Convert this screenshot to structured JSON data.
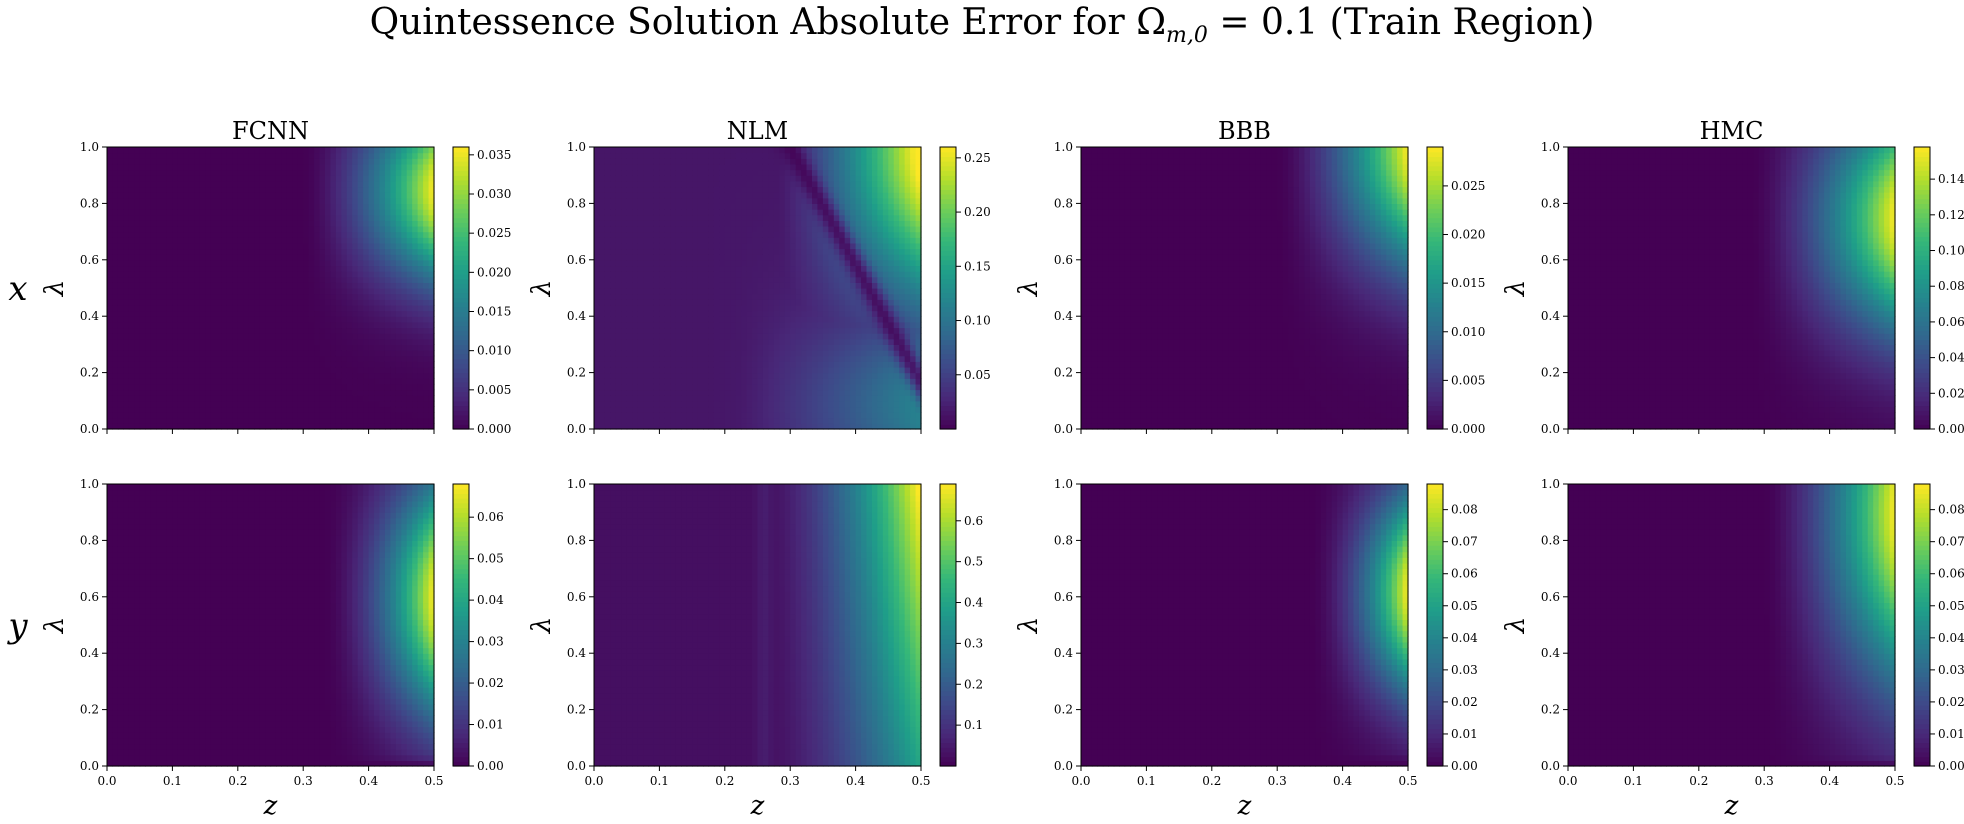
{
  "title_parts": {
    "before": "Quintessence Solution Absolute Error for Ω",
    "subscript": "m,0",
    "after": " = 0.1 (Train Region)"
  },
  "row_labels": [
    "x",
    "y"
  ],
  "colormap": "viridis",
  "colormap_stops": [
    "#440154",
    "#482878",
    "#3e4989",
    "#31688e",
    "#26828e",
    "#1f9e89",
    "#35b779",
    "#6ece58",
    "#b5de2b",
    "#fde725"
  ],
  "chart_data": [
    {
      "type": "heatmap",
      "row": 0,
      "col": 0,
      "title": "FCNN",
      "xlabel": "",
      "ylabel": "λ",
      "xlim": [
        0,
        0.5
      ],
      "ylim": [
        0,
        1.0
      ],
      "show_xticklabels": false,
      "x_ticks": [
        "0.0",
        "0.1",
        "0.2",
        "0.3",
        "0.4",
        "0.5"
      ],
      "y_ticks": [
        "0.0",
        "0.2",
        "0.4",
        "0.6",
        "0.8",
        "1.0"
      ],
      "colorbar": {
        "min": 0.0,
        "max": 0.036,
        "ticks": [
          "0.000",
          "0.005",
          "0.010",
          "0.015",
          "0.020",
          "0.025",
          "0.030",
          "0.035"
        ]
      },
      "pattern": {
        "kind": "corner",
        "z0": 0.3,
        "lambda_center": 0.85,
        "lambda_width": 0.32
      }
    },
    {
      "type": "heatmap",
      "row": 0,
      "col": 1,
      "title": "NLM",
      "xlabel": "",
      "ylabel": "λ",
      "xlim": [
        0,
        0.5
      ],
      "ylim": [
        0,
        1.0
      ],
      "show_xticklabels": false,
      "x_ticks": [
        "0.0",
        "0.1",
        "0.2",
        "0.3",
        "0.4",
        "0.5"
      ],
      "y_ticks": [
        "0.0",
        "0.2",
        "0.4",
        "0.6",
        "0.8",
        "1.0"
      ],
      "colorbar": {
        "min": 0.0,
        "max": 0.26,
        "ticks": [
          "0.05",
          "0.10",
          "0.15",
          "0.20",
          "0.25"
        ]
      },
      "pattern": {
        "kind": "nlm_x"
      }
    },
    {
      "type": "heatmap",
      "row": 0,
      "col": 2,
      "title": "BBB",
      "xlabel": "",
      "ylabel": "λ",
      "xlim": [
        0,
        0.5
      ],
      "ylim": [
        0,
        1.0
      ],
      "show_xticklabels": false,
      "x_ticks": [
        "0.0",
        "0.1",
        "0.2",
        "0.3",
        "0.4",
        "0.5"
      ],
      "y_ticks": [
        "0.0",
        "0.2",
        "0.4",
        "0.6",
        "0.8",
        "1.0"
      ],
      "colorbar": {
        "min": 0.0,
        "max": 0.029,
        "ticks": [
          "0.000",
          "0.005",
          "0.010",
          "0.015",
          "0.020",
          "0.025"
        ]
      },
      "pattern": {
        "kind": "corner",
        "z0": 0.3,
        "lambda_center": 1.0,
        "lambda_width": 0.42
      }
    },
    {
      "type": "heatmap",
      "row": 0,
      "col": 3,
      "title": "HMC",
      "xlabel": "",
      "ylabel": "λ",
      "xlim": [
        0,
        0.5
      ],
      "ylim": [
        0,
        1.0
      ],
      "show_xticklabels": false,
      "x_ticks": [
        "0.0",
        "0.1",
        "0.2",
        "0.3",
        "0.4",
        "0.5"
      ],
      "y_ticks": [
        "0.0",
        "0.2",
        "0.4",
        "0.6",
        "0.8",
        "1.0"
      ],
      "colorbar": {
        "min": 0.0,
        "max": 0.158,
        "ticks": [
          "0.00",
          "0.02",
          "0.04",
          "0.06",
          "0.08",
          "0.10",
          "0.12",
          "0.14"
        ]
      },
      "pattern": {
        "kind": "corner",
        "z0": 0.28,
        "lambda_center": 0.75,
        "lambda_width": 0.4
      }
    },
    {
      "type": "heatmap",
      "row": 1,
      "col": 0,
      "title": "",
      "xlabel": "z",
      "ylabel": "λ",
      "xlim": [
        0,
        0.5
      ],
      "ylim": [
        0,
        1.0
      ],
      "show_xticklabels": true,
      "x_ticks": [
        "0.0",
        "0.1",
        "0.2",
        "0.3",
        "0.4",
        "0.5"
      ],
      "y_ticks": [
        "0.0",
        "0.2",
        "0.4",
        "0.6",
        "0.8",
        "1.0"
      ],
      "colorbar": {
        "min": 0.0,
        "max": 0.068,
        "ticks": [
          "0.00",
          "0.01",
          "0.02",
          "0.03",
          "0.04",
          "0.05",
          "0.06"
        ]
      },
      "pattern": {
        "kind": "edge",
        "z0": 0.33,
        "lambda_center": 0.6,
        "lambda_width": 0.42,
        "bottom_dip": 0.04
      }
    },
    {
      "type": "heatmap",
      "row": 1,
      "col": 1,
      "title": "",
      "xlabel": "z",
      "ylabel": "λ",
      "xlim": [
        0,
        0.5
      ],
      "ylim": [
        0,
        1.0
      ],
      "show_xticklabels": true,
      "x_ticks": [
        "0.0",
        "0.1",
        "0.2",
        "0.3",
        "0.4",
        "0.5"
      ],
      "y_ticks": [
        "0.0",
        "0.2",
        "0.4",
        "0.6",
        "0.8",
        "1.0"
      ],
      "colorbar": {
        "min": 0.0,
        "max": 0.69,
        "ticks": [
          "0.1",
          "0.2",
          "0.3",
          "0.4",
          "0.5",
          "0.6"
        ]
      },
      "pattern": {
        "kind": "nlm_y"
      }
    },
    {
      "type": "heatmap",
      "row": 1,
      "col": 2,
      "title": "",
      "xlabel": "z",
      "ylabel": "λ",
      "xlim": [
        0,
        0.5
      ],
      "ylim": [
        0,
        1.0
      ],
      "show_xticklabels": true,
      "x_ticks": [
        "0.0",
        "0.1",
        "0.2",
        "0.3",
        "0.4",
        "0.5"
      ],
      "y_ticks": [
        "0.0",
        "0.2",
        "0.4",
        "0.6",
        "0.8",
        "1.0"
      ],
      "colorbar": {
        "min": 0.0,
        "max": 0.088,
        "ticks": [
          "0.00",
          "0.01",
          "0.02",
          "0.03",
          "0.04",
          "0.05",
          "0.06",
          "0.07",
          "0.08"
        ]
      },
      "pattern": {
        "kind": "edge",
        "z0": 0.35,
        "lambda_center": 0.62,
        "lambda_width": 0.36,
        "bottom_dip": 0.05
      }
    },
    {
      "type": "heatmap",
      "row": 1,
      "col": 3,
      "title": "",
      "xlabel": "z",
      "ylabel": "λ",
      "xlim": [
        0,
        0.5
      ],
      "ylim": [
        0,
        1.0
      ],
      "show_xticklabels": true,
      "x_ticks": [
        "0.0",
        "0.1",
        "0.2",
        "0.3",
        "0.4",
        "0.5"
      ],
      "y_ticks": [
        "0.0",
        "0.2",
        "0.4",
        "0.6",
        "0.8",
        "1.0"
      ],
      "colorbar": {
        "min": 0.0,
        "max": 0.088,
        "ticks": [
          "0.00",
          "0.01",
          "0.02",
          "0.03",
          "0.04",
          "0.05",
          "0.06",
          "0.07",
          "0.08"
        ]
      },
      "pattern": {
        "kind": "corner",
        "z0": 0.3,
        "lambda_center": 0.9,
        "lambda_width": 0.6,
        "bottom_dip": 0.04
      }
    }
  ]
}
